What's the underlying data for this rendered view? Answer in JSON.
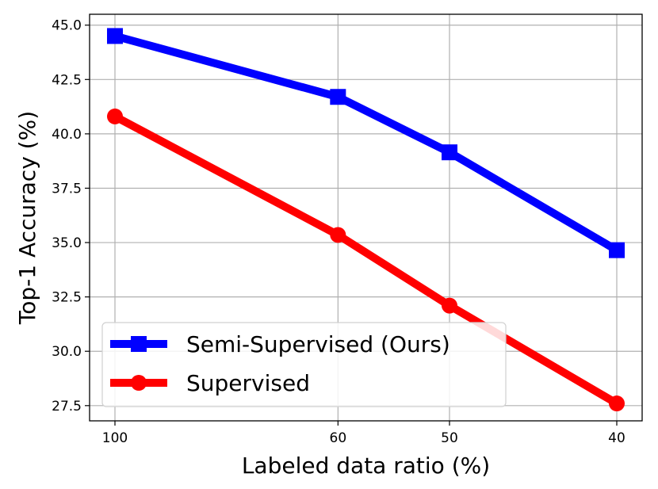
{
  "chart_data": {
    "type": "line",
    "xlabel": "Labeled data ratio (%)",
    "ylabel": "Top-1 Accuracy (%)",
    "x": [
      100,
      60,
      50,
      40
    ],
    "x_tick_labels": [
      "100",
      "60",
      "50",
      "40"
    ],
    "x_scale": "reciprocal",
    "ylim": [
      26.8,
      45.5
    ],
    "y_ticks": [
      27.5,
      30.0,
      32.5,
      35.0,
      37.5,
      40.0,
      42.5,
      45.0
    ],
    "y_tick_labels": [
      "27.5",
      "30.0",
      "32.5",
      "35.0",
      "37.5",
      "40.0",
      "42.5",
      "45.0"
    ],
    "grid": true,
    "legend_position": "lower-left",
    "series": [
      {
        "name": "Semi-Supervised (Ours)",
        "color": "#0000ff",
        "marker": "square",
        "values": [
          44.5,
          41.7,
          39.15,
          34.65
        ]
      },
      {
        "name": "Supervised",
        "color": "#ff0000",
        "marker": "circle",
        "values": [
          40.8,
          35.35,
          32.1,
          27.6
        ]
      }
    ]
  }
}
